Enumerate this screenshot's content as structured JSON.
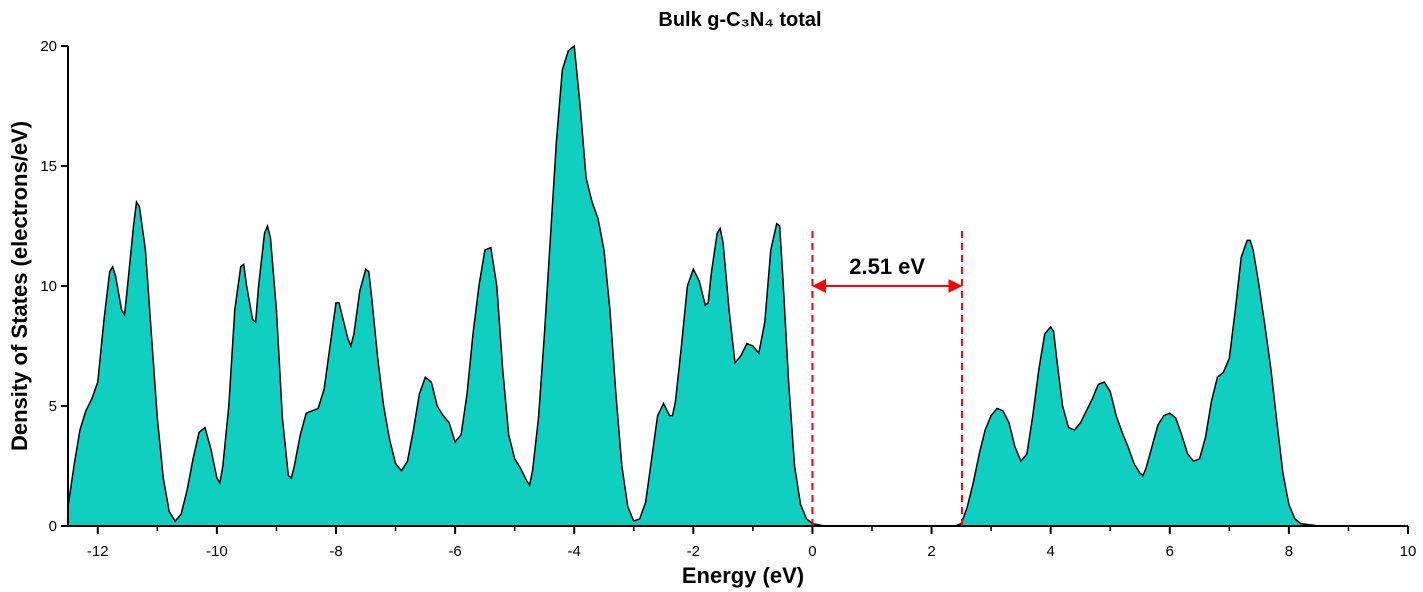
{
  "chart_data": {
    "type": "area",
    "title": "Bulk g-C₃N₄ total",
    "xlabel": "Energy (eV)",
    "ylabel": "Density of States (electrons/eV)",
    "x": [
      -12.5,
      -12.4,
      -12.3,
      -12.2,
      -12.1,
      -12.0,
      -11.9,
      -11.8,
      -11.75,
      -11.7,
      -11.6,
      -11.55,
      -11.5,
      -11.4,
      -11.35,
      -11.3,
      -11.2,
      -11.1,
      -11.0,
      -10.9,
      -10.8,
      -10.7,
      -10.6,
      -10.5,
      -10.4,
      -10.3,
      -10.2,
      -10.1,
      -10.0,
      -9.95,
      -9.9,
      -9.8,
      -9.7,
      -9.6,
      -9.55,
      -9.5,
      -9.4,
      -9.35,
      -9.3,
      -9.2,
      -9.15,
      -9.1,
      -9.0,
      -8.9,
      -8.8,
      -8.75,
      -8.7,
      -8.6,
      -8.5,
      -8.4,
      -8.3,
      -8.2,
      -8.1,
      -8.0,
      -7.95,
      -7.9,
      -7.8,
      -7.75,
      -7.7,
      -7.6,
      -7.5,
      -7.45,
      -7.4,
      -7.3,
      -7.2,
      -7.1,
      -7.0,
      -6.9,
      -6.8,
      -6.7,
      -6.6,
      -6.5,
      -6.4,
      -6.3,
      -6.2,
      -6.1,
      -6.0,
      -5.9,
      -5.8,
      -5.7,
      -5.6,
      -5.5,
      -5.4,
      -5.3,
      -5.2,
      -5.1,
      -5.0,
      -4.9,
      -4.8,
      -4.75,
      -4.7,
      -4.6,
      -4.5,
      -4.4,
      -4.3,
      -4.2,
      -4.1,
      -4.0,
      -3.9,
      -3.8,
      -3.7,
      -3.6,
      -3.5,
      -3.4,
      -3.3,
      -3.2,
      -3.1,
      -3.0,
      -2.9,
      -2.8,
      -2.7,
      -2.6,
      -2.5,
      -2.4,
      -2.35,
      -2.3,
      -2.2,
      -2.1,
      -2.0,
      -1.9,
      -1.8,
      -1.75,
      -1.7,
      -1.6,
      -1.55,
      -1.5,
      -1.4,
      -1.3,
      -1.2,
      -1.1,
      -1.0,
      -0.9,
      -0.8,
      -0.7,
      -0.6,
      -0.55,
      -0.5,
      -0.4,
      -0.3,
      -0.2,
      -0.1,
      0,
      0.2,
      2.4,
      2.5,
      2.6,
      2.7,
      2.8,
      2.9,
      3.0,
      3.1,
      3.2,
      3.3,
      3.4,
      3.5,
      3.6,
      3.7,
      3.8,
      3.9,
      4.0,
      4.05,
      4.1,
      4.2,
      4.3,
      4.4,
      4.5,
      4.6,
      4.7,
      4.8,
      4.9,
      5.0,
      5.1,
      5.2,
      5.3,
      5.4,
      5.5,
      5.55,
      5.6,
      5.7,
      5.8,
      5.9,
      6.0,
      6.1,
      6.2,
      6.3,
      6.4,
      6.5,
      6.6,
      6.7,
      6.8,
      6.9,
      7.0,
      7.1,
      7.2,
      7.3,
      7.35,
      7.4,
      7.5,
      7.6,
      7.7,
      7.8,
      7.9,
      8.0,
      8.1,
      8.2,
      8.5
    ],
    "values": [
      0.8,
      2.5,
      4.0,
      4.8,
      5.3,
      6.0,
      8.5,
      10.6,
      10.8,
      10.4,
      9.0,
      8.8,
      10.0,
      12.5,
      13.5,
      13.3,
      11.5,
      8.0,
      4.5,
      2.0,
      0.6,
      0.2,
      0.5,
      1.5,
      2.8,
      3.9,
      4.1,
      3.2,
      2.0,
      1.8,
      2.5,
      5.0,
      9.0,
      10.8,
      10.9,
      10.0,
      8.6,
      8.5,
      10.0,
      12.2,
      12.5,
      12.0,
      9.0,
      4.5,
      2.1,
      2.0,
      2.5,
      3.8,
      4.7,
      4.8,
      4.9,
      5.7,
      7.5,
      9.3,
      9.3,
      8.8,
      7.8,
      7.5,
      8.0,
      9.8,
      10.7,
      10.6,
      9.5,
      7.0,
      5.0,
      3.6,
      2.6,
      2.3,
      2.7,
      4.0,
      5.5,
      6.2,
      6.0,
      5.0,
      4.6,
      4.3,
      3.5,
      3.8,
      5.5,
      8.0,
      10.0,
      11.5,
      11.6,
      10.0,
      6.5,
      3.8,
      2.8,
      2.4,
      1.9,
      1.7,
      2.3,
      4.5,
      8.0,
      12.0,
      16.0,
      19.0,
      19.8,
      20.0,
      17.5,
      14.5,
      13.5,
      12.8,
      11.5,
      9.0,
      5.5,
      2.5,
      0.8,
      0.2,
      0.3,
      1.0,
      2.8,
      4.6,
      5.1,
      4.6,
      4.6,
      5.2,
      7.5,
      10.0,
      10.7,
      10.2,
      9.2,
      9.3,
      10.5,
      12.2,
      12.4,
      11.8,
      9.0,
      6.8,
      7.1,
      7.6,
      7.5,
      7.2,
      8.5,
      11.5,
      12.6,
      12.5,
      10.5,
      6.0,
      2.5,
      0.9,
      0.3,
      0.1,
      0,
      0,
      0.1,
      0.8,
      1.8,
      3.0,
      4.0,
      4.6,
      4.9,
      4.8,
      4.3,
      3.3,
      2.7,
      3.0,
      4.6,
      6.5,
      8.0,
      8.3,
      8.1,
      7.0,
      5.0,
      4.1,
      4.0,
      4.3,
      4.8,
      5.3,
      5.9,
      6.0,
      5.6,
      4.6,
      3.9,
      3.3,
      2.6,
      2.2,
      2.1,
      2.4,
      3.3,
      4.2,
      4.6,
      4.7,
      4.5,
      3.8,
      3.0,
      2.7,
      2.8,
      3.7,
      5.2,
      6.2,
      6.4,
      7.0,
      9.0,
      11.2,
      11.9,
      11.9,
      11.5,
      10.0,
      8.3,
      6.5,
      4.3,
      2.2,
      0.9,
      0.3,
      0.1,
      0
    ],
    "color": "#10cfc0",
    "xlim": [
      -12.5,
      10
    ],
    "ylim": [
      0,
      20
    ],
    "xticks": [
      -12,
      -10,
      -8,
      -6,
      -4,
      -2,
      0,
      2,
      4,
      6,
      8,
      10
    ],
    "xminorticks": [
      -11,
      -9,
      -7,
      -5,
      -3,
      -1,
      1,
      3,
      5,
      7,
      9
    ],
    "yticks": [
      0,
      5,
      10,
      15,
      20
    ],
    "annotation": {
      "text": "2.51 eV",
      "x_start": 0,
      "x_end": 2.51,
      "arrow_y": 10,
      "color": "#ff0000"
    }
  }
}
